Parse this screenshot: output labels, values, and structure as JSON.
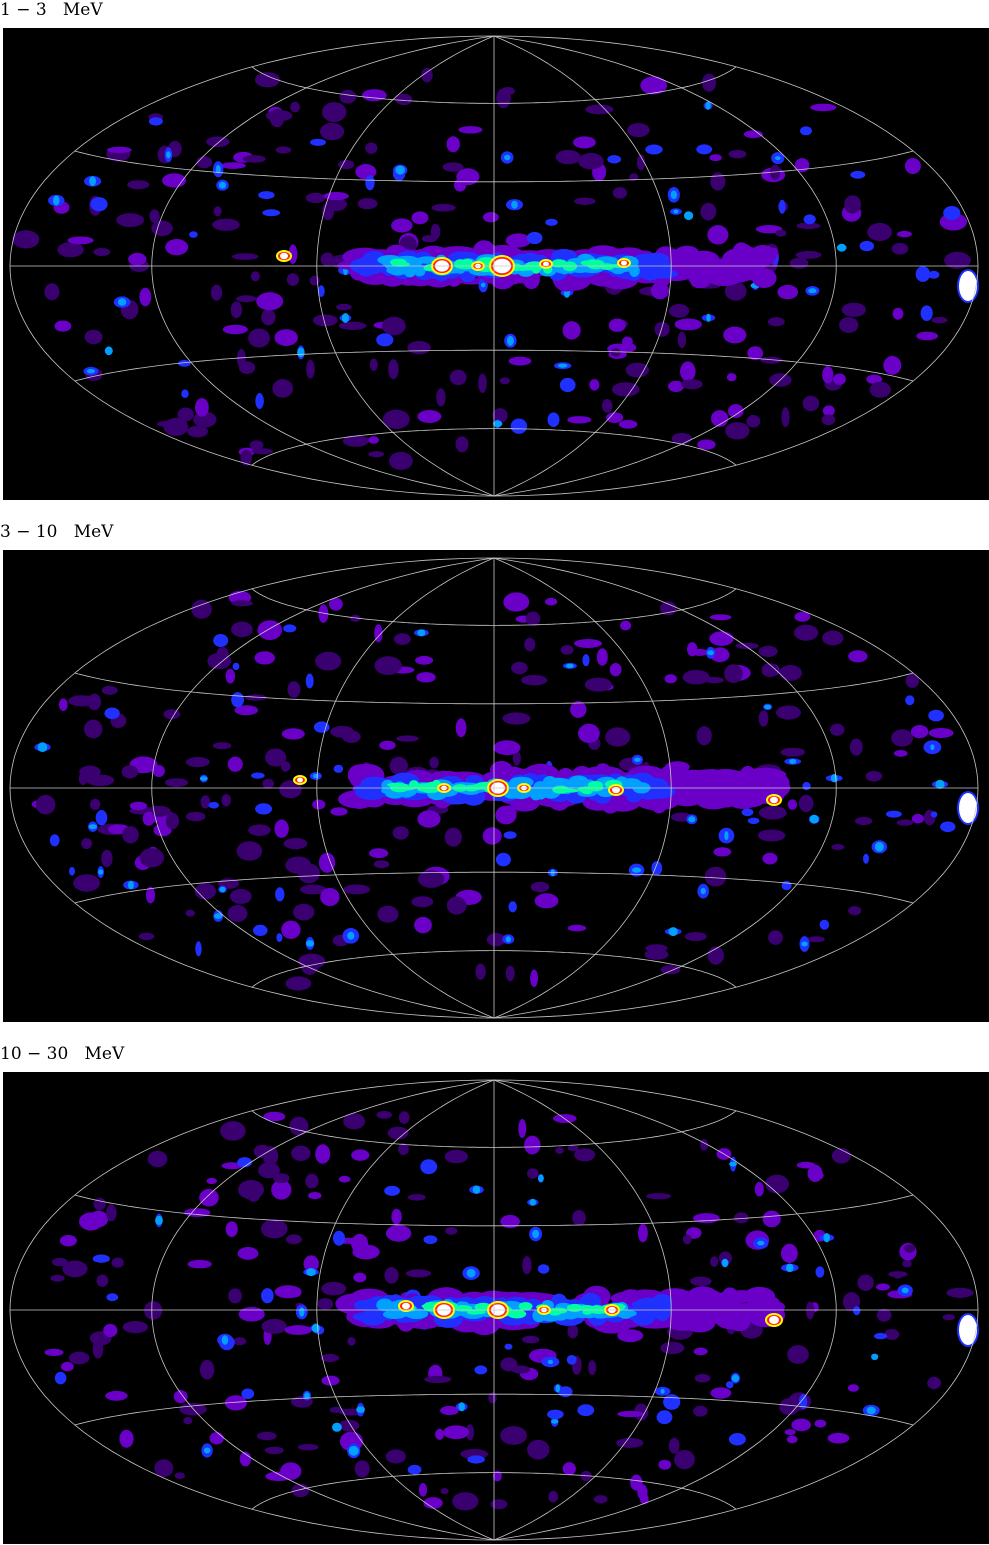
{
  "panels": [
    {
      "label": "1 − 3   MeV"
    },
    {
      "label": "3 − 10   MeV"
    },
    {
      "label": "10 − 30   MeV"
    }
  ],
  "colors": {
    "background": "#000000",
    "grid": "#c8c8c8",
    "colormap": [
      "#000000",
      "#3a0070",
      "#6a00c8",
      "#2030ff",
      "#00a0ff",
      "#00ffa0",
      "#ffff00",
      "#ff2020",
      "#ffffff"
    ]
  }
}
